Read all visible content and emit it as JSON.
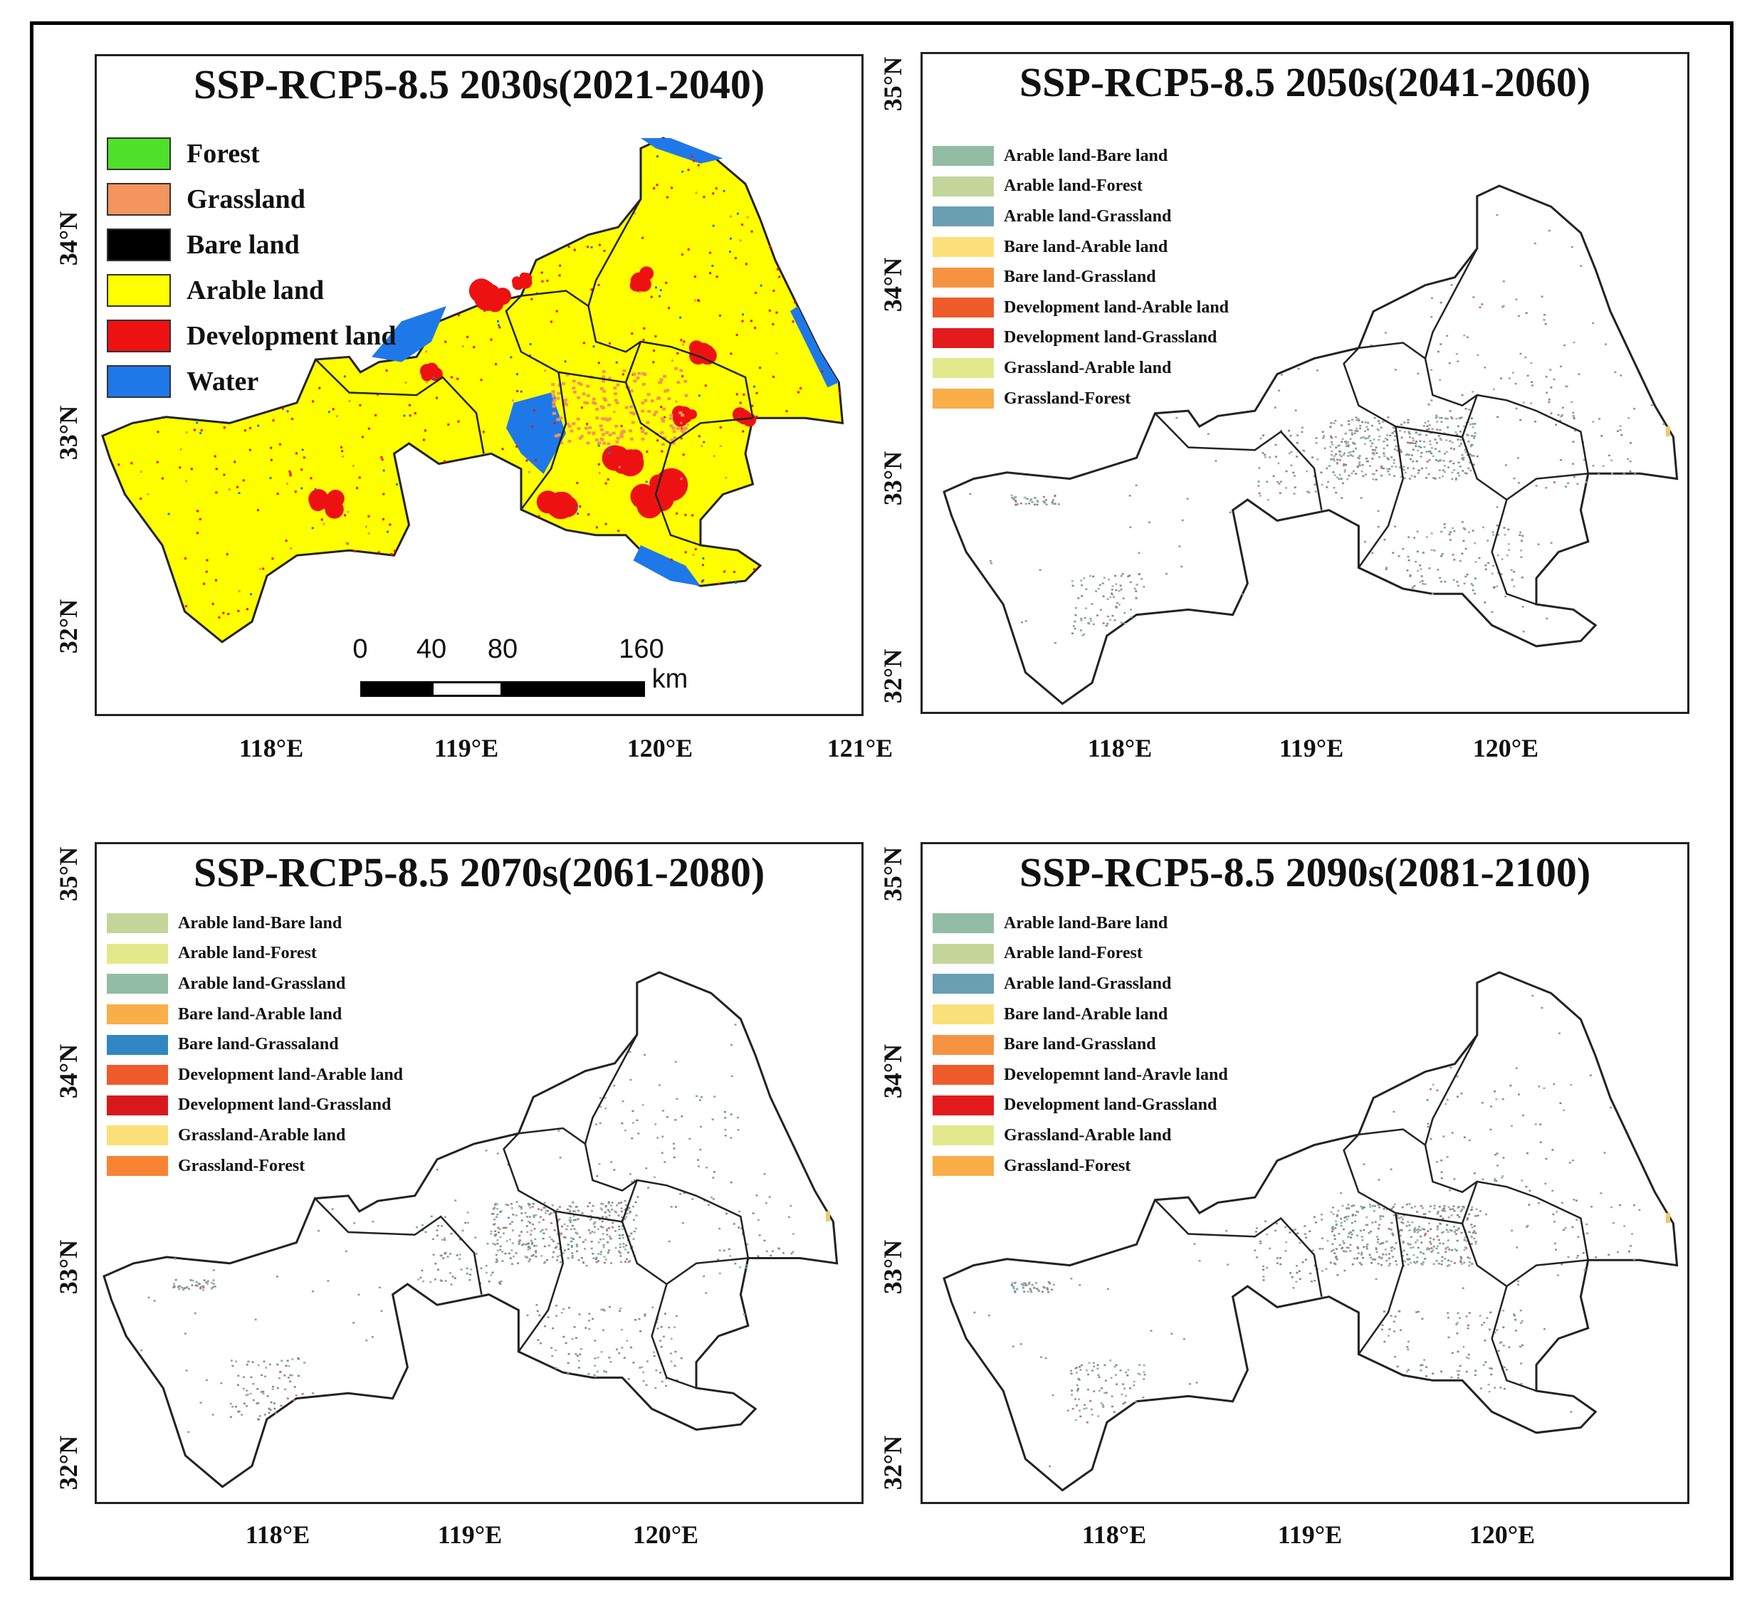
{
  "panels": [
    {
      "title": "SSP-RCP5-8.5 2030s(2021-2040)",
      "legend": [
        {
          "label": "Forest",
          "color": "#4fe02a"
        },
        {
          "label": "Grassland",
          "color": "#f3955c"
        },
        {
          "label": "Bare land",
          "color": "#000000"
        },
        {
          "label": "Arable land",
          "color": "#ffff00"
        },
        {
          "label": "Development land",
          "color": "#ee1111"
        },
        {
          "label": "Water",
          "color": "#1f78e8"
        }
      ],
      "lon_labels": [
        "118°E",
        "119°E",
        "120°E",
        "121°E"
      ],
      "lat_labels": [
        "34°N",
        "33°N",
        "32°N"
      ],
      "scale_bar": {
        "ticks": [
          "0",
          "40",
          "80",
          "160"
        ],
        "unit": "km"
      }
    },
    {
      "title": "SSP-RCP5-8.5 2050s(2041-2060)",
      "legend": [
        {
          "label": "Arable land-Bare land",
          "color": "#93bca4"
        },
        {
          "label": "Arable land-Forest",
          "color": "#c3d69a"
        },
        {
          "label": "Arable land-Grassland",
          "color": "#6a9fb2"
        },
        {
          "label": "Bare land-Arable land",
          "color": "#fbe07a"
        },
        {
          "label": "Bare land-Grassland",
          "color": "#f69343"
        },
        {
          "label": "Development land-Arable land",
          "color": "#ef5b2a"
        },
        {
          "label": "Development land-Grassland",
          "color": "#e31b1c"
        },
        {
          "label": "Grassland-Arable land",
          "color": "#e2e88c"
        },
        {
          "label": "Grassland-Forest",
          "color": "#f9ae48"
        }
      ],
      "lon_labels": [
        "118°E",
        "119°E",
        "120°E"
      ],
      "lat_labels": [
        "35°N",
        "34°N",
        "33°N",
        "32°N"
      ]
    },
    {
      "title": "SSP-RCP5-8.5 2070s(2061-2080)",
      "legend": [
        {
          "label": "Arable land-Bare land",
          "color": "#c3d69a"
        },
        {
          "label": "Arable land-Forest",
          "color": "#e2e88c"
        },
        {
          "label": "Arable land-Grassland",
          "color": "#93bca4"
        },
        {
          "label": "Bare land-Arable land",
          "color": "#f9ae48"
        },
        {
          "label": "Bare land-Grassaland",
          "color": "#2f86c2"
        },
        {
          "label": "Development land-Arable land",
          "color": "#ef5b2a"
        },
        {
          "label": "Development land-Grassland",
          "color": "#d7191c"
        },
        {
          "label": "Grassland-Arable land",
          "color": "#fbe07a"
        },
        {
          "label": "Grassland-Forest",
          "color": "#f68433"
        }
      ],
      "lon_labels": [
        "118°E",
        "119°E",
        "120°E"
      ],
      "lat_labels": [
        "35°N",
        "34°N",
        "33°N",
        "32°N"
      ]
    },
    {
      "title": "SSP-RCP5-8.5 2090s(2081-2100)",
      "legend": [
        {
          "label": "Arable land-Bare land",
          "color": "#93bca4"
        },
        {
          "label": "Arable land-Forest",
          "color": "#c3d69a"
        },
        {
          "label": "Arable land-Grassland",
          "color": "#6a9fb2"
        },
        {
          "label": "Bare land-Arable land",
          "color": "#fbe07a"
        },
        {
          "label": "Bare land-Grassland",
          "color": "#f69343"
        },
        {
          "label": "Developemnt land-Aravle land",
          "color": "#ef5b2a"
        },
        {
          "label": "Development land-Grassland",
          "color": "#e31b1c"
        },
        {
          "label": "Grassland-Arable land",
          "color": "#e2e88c"
        },
        {
          "label": "Grassland-Forest",
          "color": "#f9ae48"
        }
      ],
      "lon_labels": [
        "118°E",
        "119°E",
        "120°E"
      ],
      "lat_labels": [
        "35°N",
        "34°N",
        "33°N",
        "32°N"
      ]
    }
  ]
}
